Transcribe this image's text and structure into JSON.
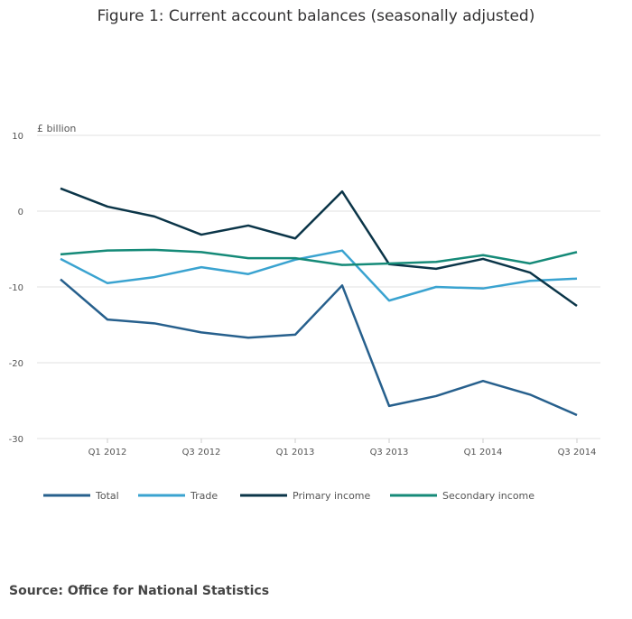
{
  "chart_data": {
    "type": "line",
    "title": "Figure 1: Current account balances (seasonally adjusted)",
    "y_label": "£ billion",
    "categories": [
      null,
      "Q1 2012",
      null,
      "Q3 2012",
      null,
      "Q1 2013",
      null,
      "Q3 2013",
      null,
      "Q1 2014",
      null,
      "Q3 2014"
    ],
    "series": [
      {
        "name": "Total",
        "color": "#27608d",
        "values": [
          -9.0,
          -14.3,
          -14.8,
          -16.0,
          -16.7,
          -16.3,
          -9.8,
          -25.7,
          -24.4,
          -22.4,
          -24.2,
          -26.9
        ]
      },
      {
        "name": "Trade",
        "color": "#3aa3d0",
        "values": [
          -6.3,
          -9.5,
          -8.7,
          -7.4,
          -8.3,
          -6.4,
          -5.2,
          -11.8,
          -10.0,
          -10.2,
          -9.2,
          -8.9
        ]
      },
      {
        "name": "Primary income",
        "color": "#0b3548",
        "values": [
          3.0,
          0.6,
          -0.7,
          -3.1,
          -1.9,
          -3.6,
          2.6,
          -7.0,
          -7.6,
          -6.3,
          -8.1,
          -12.5
        ]
      },
      {
        "name": "Secondary income",
        "color": "#158a78",
        "values": [
          -5.7,
          -5.2,
          -5.1,
          -5.4,
          -6.2,
          -6.2,
          -7.1,
          -6.9,
          -6.7,
          -5.8,
          -6.9,
          -5.4
        ]
      }
    ],
    "ylim": [
      -30,
      10
    ],
    "yticks": [
      -30,
      -20,
      -10,
      0,
      10
    ],
    "grid": true,
    "source": "Source: Office for National Statistics"
  }
}
